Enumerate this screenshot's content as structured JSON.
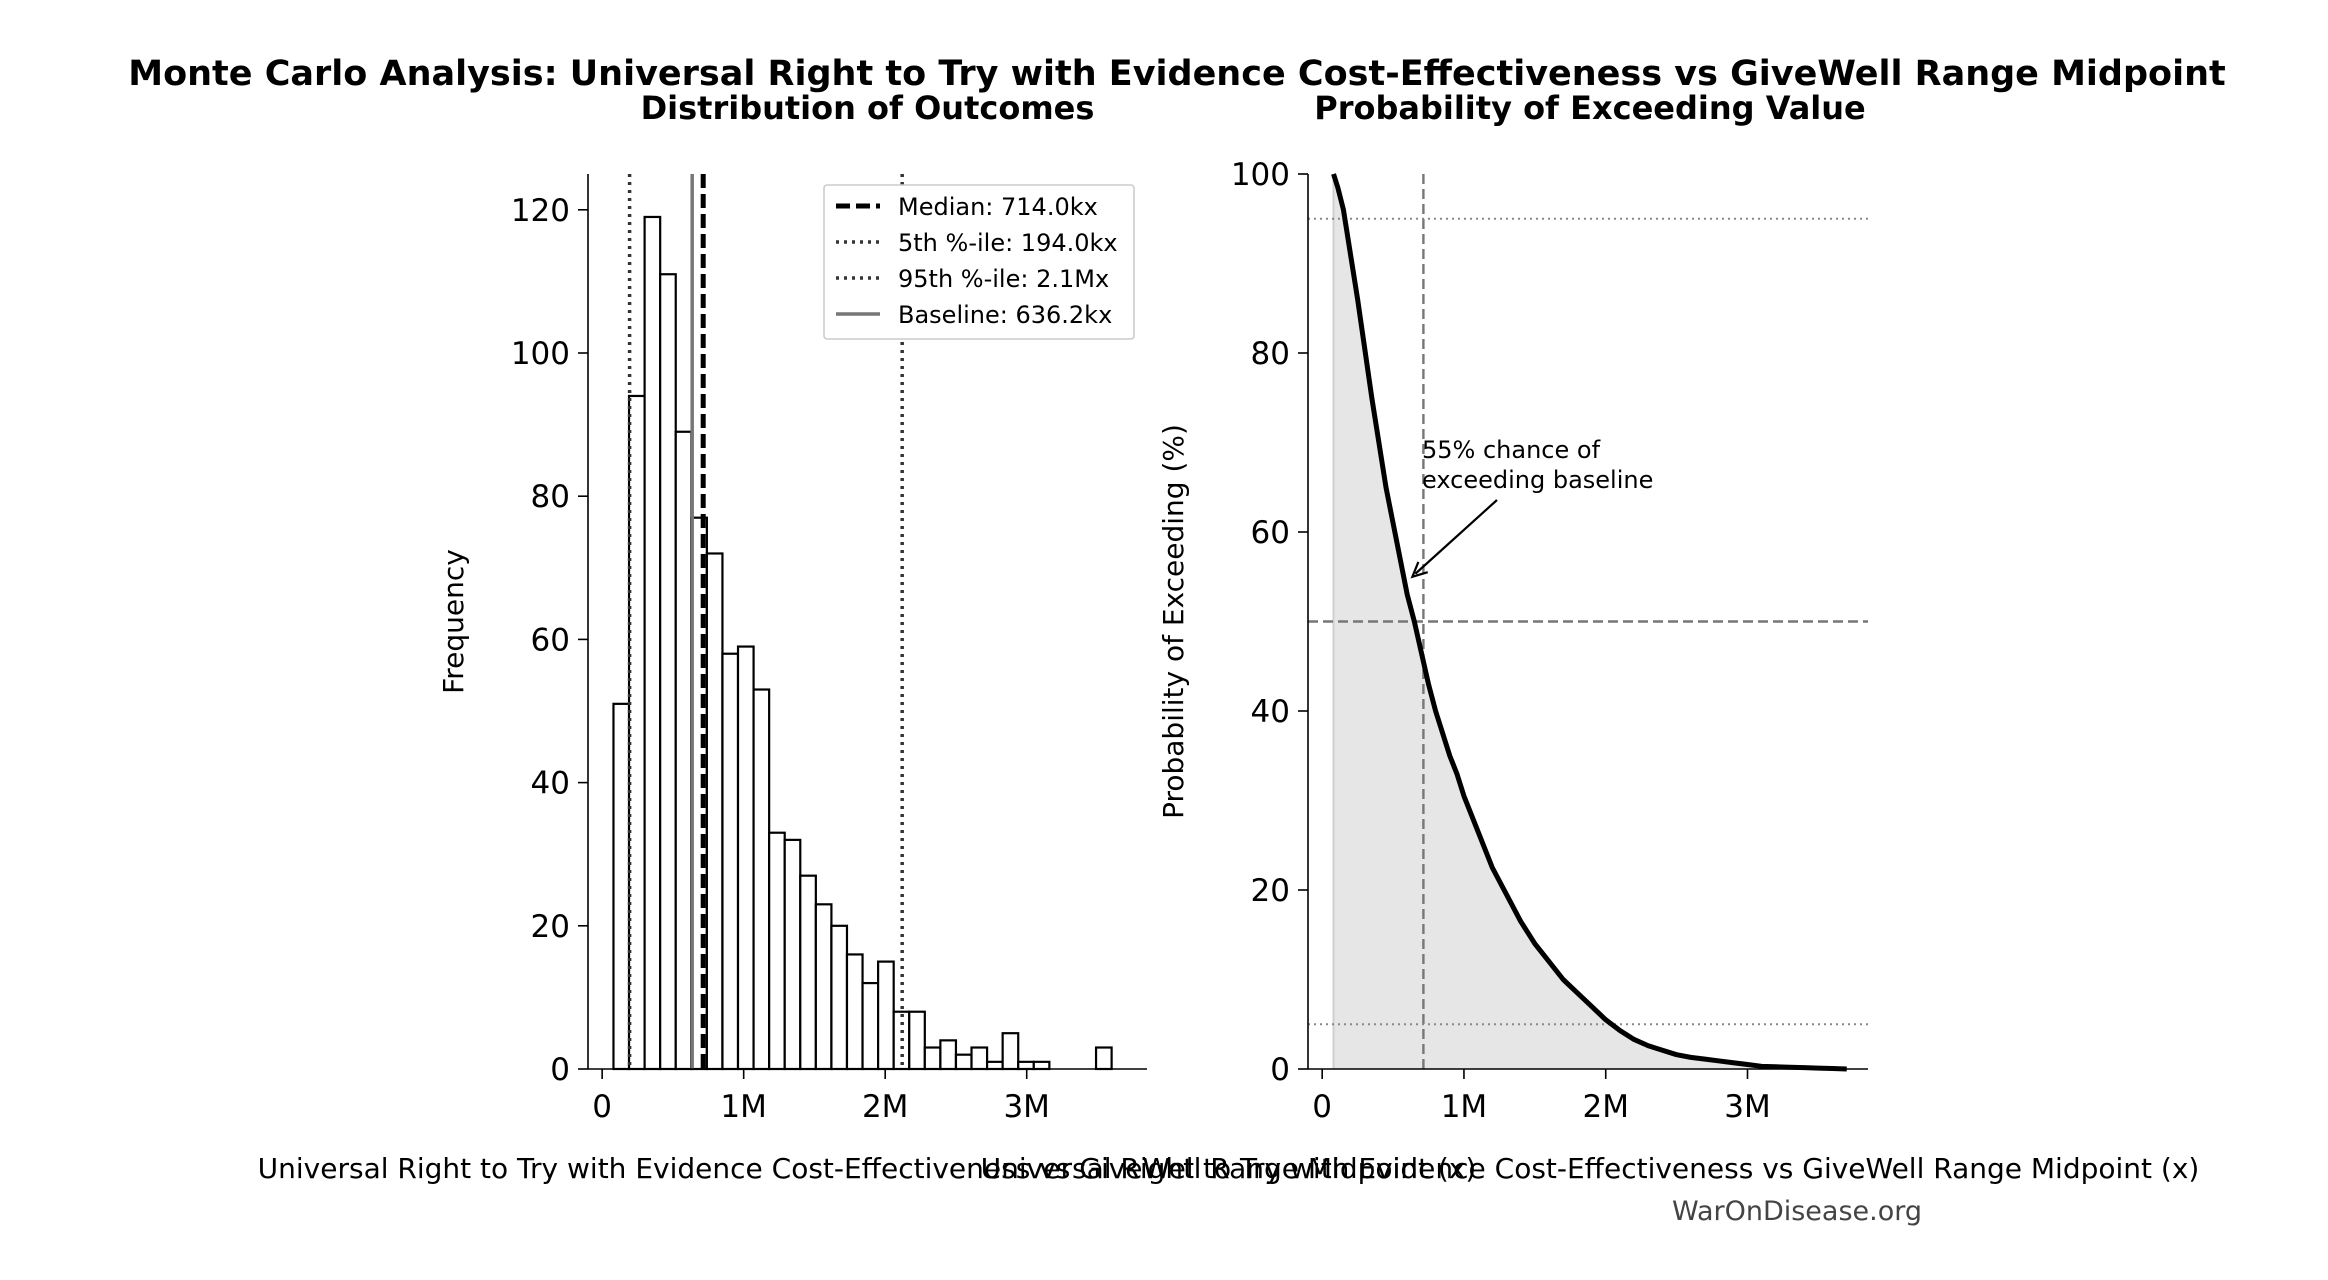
{
  "figure": {
    "suptitle": "Monte Carlo Analysis: Universal Right to Try with Evidence Cost-Effectiveness vs GiveWell Range Midpoint",
    "watermark": "WarOnDisease.org"
  },
  "chart_data": [
    {
      "type": "bar",
      "subtype": "histogram",
      "title": "Distribution of Outcomes",
      "xlabel": "Universal Right to Try with Evidence Cost-Effectiveness vs GiveWell Range Midpoint (x)",
      "ylabel": "Frequency",
      "xlim": [
        -100000,
        3850000
      ],
      "ylim": [
        0,
        125
      ],
      "xticks": [
        0,
        1000000,
        2000000,
        3000000
      ],
      "xtick_labels": [
        "0",
        "1M",
        "2M",
        "3M"
      ],
      "yticks": [
        0,
        20,
        40,
        60,
        80,
        100,
        120
      ],
      "grid": false,
      "bin_width": 110000,
      "bin_start": 80000,
      "counts": [
        51,
        94,
        119,
        111,
        89,
        77,
        72,
        58,
        59,
        53,
        33,
        32,
        27,
        23,
        20,
        16,
        12,
        15,
        8,
        8,
        3,
        4,
        2,
        3,
        1,
        5,
        1,
        1,
        0,
        0,
        0,
        3
      ],
      "reference_lines": [
        {
          "name": "Median: 714.0kx",
          "value": 714000,
          "style": "dashed",
          "color": "#000000"
        },
        {
          "name": "5th %-ile: 194.0kx",
          "value": 194000,
          "style": "dotted",
          "color": "#333333"
        },
        {
          "name": "95th %-ile: 2.1Mx",
          "value": 2120000,
          "style": "dotted",
          "color": "#333333"
        },
        {
          "name": "Baseline: 636.2kx",
          "value": 636200,
          "style": "solid",
          "color": "#777777"
        }
      ],
      "legend": [
        "Median: 714.0kx",
        "5th %-ile: 194.0kx",
        "95th %-ile: 2.1Mx",
        "Baseline: 636.2kx"
      ],
      "legend_position": "top-right"
    },
    {
      "type": "line",
      "subtype": "exceedance",
      "title": "Probability of Exceeding Value",
      "xlabel": "Universal Right to Try with Evidence Cost-Effectiveness vs GiveWell Range Midpoint (x)",
      "ylabel": "Probability of Exceeding (%)",
      "xlim": [
        -100000,
        3850000
      ],
      "ylim": [
        0,
        100
      ],
      "xticks": [
        0,
        1000000,
        2000000,
        3000000
      ],
      "xtick_labels": [
        "0",
        "1M",
        "2M",
        "3M"
      ],
      "yticks": [
        0,
        20,
        40,
        60,
        80,
        100
      ],
      "grid": false,
      "series": [
        {
          "x": [
            80000,
            110000,
            150000,
            200000,
            250000,
            300000,
            350000,
            400000,
            450000,
            500000,
            550000,
            600000,
            650000,
            700000,
            750000,
            800000,
            850000,
            900000,
            950000,
            1000000,
            1100000,
            1200000,
            1300000,
            1400000,
            1500000,
            1600000,
            1700000,
            1800000,
            1900000,
            2000000,
            2100000,
            2200000,
            2300000,
            2400000,
            2500000,
            2600000,
            2700000,
            2800000,
            2900000,
            3000000,
            3100000,
            3200000,
            3300000,
            3400000,
            3500000,
            3600000,
            3700000
          ],
          "y": [
            100,
            98.5,
            96,
            91,
            86,
            80.5,
            75,
            70,
            65,
            61,
            57,
            53,
            50,
            46.5,
            43,
            40,
            37.5,
            35,
            33,
            30.5,
            26.5,
            22.5,
            19.5,
            16.5,
            14,
            12,
            10,
            8.5,
            7,
            5.5,
            4.3,
            3.3,
            2.6,
            2.1,
            1.6,
            1.3,
            1.1,
            0.9,
            0.7,
            0.5,
            0.3,
            0.25,
            0.2,
            0.15,
            0.1,
            0.05,
            0
          ]
        }
      ],
      "fill_under": true,
      "reference_lines": [
        {
          "axis": "x",
          "value": 714000,
          "style": "dashed",
          "color": "#777777"
        },
        {
          "axis": "y",
          "value": 50,
          "style": "dashed",
          "color": "#777777"
        },
        {
          "axis": "y",
          "value": 95,
          "style": "dotted",
          "color": "#888888"
        },
        {
          "axis": "y",
          "value": 5,
          "style": "dotted",
          "color": "#888888"
        }
      ],
      "annotation": {
        "text_lines": [
          "55% chance of",
          "exceeding baseline"
        ],
        "point": [
          636200,
          55
        ]
      }
    }
  ]
}
